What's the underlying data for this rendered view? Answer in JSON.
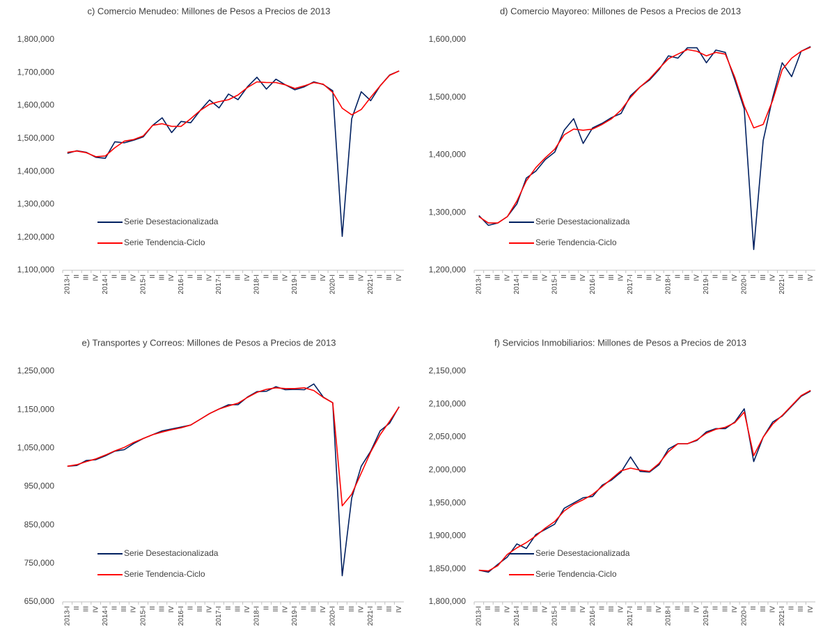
{
  "chart_data": [
    {
      "type": "line",
      "title": "c) Comercio Menudeo: Millones de Pesos a Precios de 2013",
      "categories": [
        "2013-I",
        "II",
        "III",
        "IV",
        "2014-I",
        "II",
        "III",
        "IV",
        "2015-I",
        "II",
        "III",
        "IV",
        "2016-I",
        "II",
        "III",
        "IV",
        "2017-I",
        "II",
        "III",
        "IV",
        "2018-I",
        "II",
        "III",
        "IV",
        "2019-I",
        "II",
        "III",
        "IV",
        "2020-I",
        "II",
        "III",
        "IV",
        "2021-I",
        "II",
        "III",
        "IV"
      ],
      "series": [
        {
          "name": "Serie Desestacionalizada",
          "color": "#002060",
          "values": [
            1455000,
            1463000,
            1458000,
            1443000,
            1440000,
            1490000,
            1487000,
            1495000,
            1505000,
            1540000,
            1563000,
            1518000,
            1552000,
            1548000,
            1585000,
            1617000,
            1593000,
            1635000,
            1618000,
            1657000,
            1686000,
            1650000,
            1680000,
            1663000,
            1648000,
            1657000,
            1672000,
            1664000,
            1645000,
            1203000,
            1560000,
            1642000,
            1615000,
            1660000,
            1693000,
            1705000
          ]
        },
        {
          "name": "Serie Tendencia-Ciclo",
          "color": "#ff0000",
          "values": [
            1458000,
            1462000,
            1457000,
            1445000,
            1447000,
            1472000,
            1492000,
            1497000,
            1508000,
            1540000,
            1545000,
            1537000,
            1537000,
            1560000,
            1585000,
            1604000,
            1612000,
            1618000,
            1632000,
            1655000,
            1672000,
            1670000,
            1670000,
            1663000,
            1652000,
            1660000,
            1670000,
            1665000,
            1640000,
            1592000,
            1572000,
            1588000,
            1625000,
            1660000,
            1692000,
            1705000
          ]
        }
      ],
      "ylim": [
        1100000,
        1800000
      ],
      "yticks": [
        {
          "value": 1100000,
          "label": "1,100,000"
        },
        {
          "value": 1200000,
          "label": "1,200,000"
        },
        {
          "value": 1300000,
          "label": "1,300,000"
        },
        {
          "value": 1400000,
          "label": "1,400,000"
        },
        {
          "value": 1500000,
          "label": "1,500,000"
        },
        {
          "value": 1600000,
          "label": "1,600,000"
        },
        {
          "value": 1700000,
          "label": "1,700,000"
        },
        {
          "value": 1800000,
          "label": "1,800,000"
        }
      ]
    },
    {
      "type": "line",
      "title": "d) Comercio Mayoreo: Millones de Pesos a Precios de 2013",
      "categories": [
        "2013-I",
        "II",
        "III",
        "IV",
        "2014-I",
        "II",
        "III",
        "IV",
        "2015-I",
        "II",
        "III",
        "IV",
        "2016-I",
        "II",
        "III",
        "IV",
        "2017-I",
        "II",
        "III",
        "IV",
        "2018-I",
        "II",
        "III",
        "IV",
        "2019-I",
        "II",
        "III",
        "IV",
        "2020-I",
        "II",
        "III",
        "IV",
        "2021-I",
        "II",
        "III",
        "IV"
      ],
      "series": [
        {
          "name": "Serie Desestacionalizada",
          "color": "#002060",
          "values": [
            1295000,
            1278000,
            1282000,
            1293000,
            1315000,
            1360000,
            1372000,
            1392000,
            1405000,
            1443000,
            1463000,
            1420000,
            1447000,
            1455000,
            1465000,
            1472000,
            1503000,
            1518000,
            1530000,
            1548000,
            1572000,
            1568000,
            1586000,
            1586000,
            1560000,
            1582000,
            1578000,
            1530000,
            1480000,
            1236000,
            1425000,
            1500000,
            1560000,
            1536000,
            1580000,
            1588000
          ]
        },
        {
          "name": "Serie Tendencia-Ciclo",
          "color": "#ff0000",
          "values": [
            1293000,
            1282000,
            1282000,
            1293000,
            1320000,
            1355000,
            1378000,
            1395000,
            1410000,
            1435000,
            1445000,
            1443000,
            1445000,
            1453000,
            1463000,
            1478000,
            1500000,
            1518000,
            1532000,
            1550000,
            1567000,
            1575000,
            1583000,
            1580000,
            1572000,
            1578000,
            1575000,
            1535000,
            1485000,
            1447000,
            1453000,
            1495000,
            1548000,
            1568000,
            1580000,
            1587000
          ]
        }
      ],
      "ylim": [
        1200000,
        1600000
      ],
      "yticks": [
        {
          "value": 1200000,
          "label": "1,200,000"
        },
        {
          "value": 1300000,
          "label": "1,300,000"
        },
        {
          "value": 1400000,
          "label": "1,400,000"
        },
        {
          "value": 1500000,
          "label": "1,500,000"
        },
        {
          "value": 1600000,
          "label": "1,600,000"
        }
      ]
    },
    {
      "type": "line",
      "title": "e) Transportes y Correos: Millones de Pesos a Precios de 2013",
      "categories": [
        "2013-I",
        "II",
        "III",
        "IV",
        "2014-I",
        "II",
        "III",
        "IV",
        "2015-I",
        "II",
        "III",
        "IV",
        "2016-I",
        "II",
        "III",
        "IV",
        "2017-I",
        "II",
        "III",
        "IV",
        "2018-I",
        "II",
        "III",
        "IV",
        "2019-I",
        "II",
        "III",
        "IV",
        "2020-I",
        "II",
        "III",
        "IV",
        "2021-I",
        "II",
        "III",
        "IV"
      ],
      "series": [
        {
          "name": "Serie Desestacionalizada",
          "color": "#002060",
          "values": [
            1003000,
            1005000,
            1018000,
            1020000,
            1030000,
            1042000,
            1046000,
            1062000,
            1075000,
            1085000,
            1095000,
            1100000,
            1105000,
            1110000,
            1125000,
            1140000,
            1152000,
            1163000,
            1163000,
            1183000,
            1197000,
            1198000,
            1210000,
            1202000,
            1203000,
            1202000,
            1217000,
            1183000,
            1168000,
            718000,
            920000,
            1003000,
            1042000,
            1095000,
            1115000,
            1158000
          ]
        },
        {
          "name": "Serie Tendencia-Ciclo",
          "color": "#ff0000",
          "values": [
            1003000,
            1007000,
            1015000,
            1022000,
            1032000,
            1043000,
            1052000,
            1065000,
            1075000,
            1085000,
            1092000,
            1098000,
            1103000,
            1110000,
            1125000,
            1140000,
            1152000,
            1160000,
            1167000,
            1182000,
            1195000,
            1203000,
            1207000,
            1205000,
            1205000,
            1207000,
            1200000,
            1182000,
            1168000,
            900000,
            930000,
            985000,
            1040000,
            1085000,
            1120000,
            1157000
          ]
        }
      ],
      "ylim": [
        650000,
        1250000
      ],
      "yticks": [
        {
          "value": 650000,
          "label": "650,000"
        },
        {
          "value": 750000,
          "label": "750,000"
        },
        {
          "value": 850000,
          "label": "850,000"
        },
        {
          "value": 950000,
          "label": "950,000"
        },
        {
          "value": 1050000,
          "label": "1,050,000"
        },
        {
          "value": 1150000,
          "label": "1,150,000"
        },
        {
          "value": 1250000,
          "label": "1,250,000"
        }
      ]
    },
    {
      "type": "line",
      "title": "f) Servicios Inmobiliarios: Millones de Pesos a Precios de 2013",
      "categories": [
        "2013-I",
        "II",
        "III",
        "IV",
        "2014-I",
        "II",
        "III",
        "IV",
        "2015-I",
        "II",
        "III",
        "IV",
        "2016-I",
        "II",
        "III",
        "IV",
        "2017-I",
        "II",
        "III",
        "IV",
        "2018-I",
        "II",
        "III",
        "IV",
        "2019-I",
        "II",
        "III",
        "IV",
        "2020-I",
        "II",
        "III",
        "IV",
        "2021-I",
        "II",
        "III",
        "IV"
      ],
      "series": [
        {
          "name": "Serie Desestacionalizada",
          "color": "#002060",
          "values": [
            1848000,
            1845000,
            1857000,
            1868000,
            1888000,
            1881000,
            1902000,
            1910000,
            1918000,
            1942000,
            1950000,
            1958000,
            1960000,
            1977000,
            1985000,
            1997000,
            2020000,
            1998000,
            1997000,
            2008000,
            2032000,
            2040000,
            2040000,
            2045000,
            2058000,
            2063000,
            2063000,
            2073000,
            2093000,
            2013000,
            2050000,
            2073000,
            2082000,
            2097000,
            2112000,
            2120000
          ]
        },
        {
          "name": "Serie Tendencia-Ciclo",
          "color": "#ff0000",
          "values": [
            1848000,
            1847000,
            1855000,
            1872000,
            1882000,
            1890000,
            1900000,
            1912000,
            1922000,
            1938000,
            1948000,
            1955000,
            1963000,
            1975000,
            1987000,
            1999000,
            2003000,
            2000000,
            1998000,
            2010000,
            2028000,
            2040000,
            2040000,
            2046000,
            2056000,
            2062000,
            2065000,
            2072000,
            2088000,
            2022000,
            2050000,
            2070000,
            2083000,
            2098000,
            2113000,
            2121000
          ]
        }
      ],
      "ylim": [
        1800000,
        2150000
      ],
      "yticks": [
        {
          "value": 1800000,
          "label": "1,800,000"
        },
        {
          "value": 1850000,
          "label": "1,850,000"
        },
        {
          "value": 1900000,
          "label": "1,900,000"
        },
        {
          "value": 1950000,
          "label": "1,950,000"
        },
        {
          "value": 2000000,
          "label": "2,000,000"
        },
        {
          "value": 2050000,
          "label": "2,050,000"
        },
        {
          "value": 2100000,
          "label": "2,100,000"
        },
        {
          "value": 2150000,
          "label": "2,150,000"
        }
      ]
    }
  ]
}
